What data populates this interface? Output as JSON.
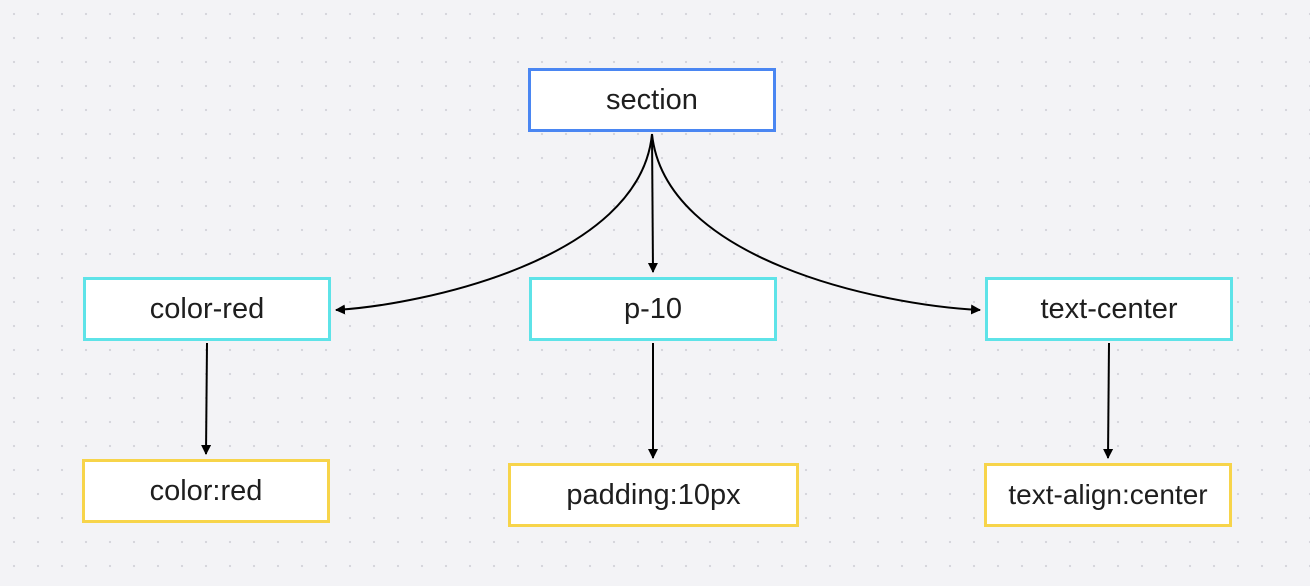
{
  "diagram": {
    "type": "tree",
    "colors": {
      "root_border": "#4a86f2",
      "utility_border": "#5ee3e8",
      "css_border": "#f7d44a",
      "edge": "#000000"
    },
    "root": {
      "label": "section"
    },
    "utilities": [
      {
        "label": "color-red",
        "css": "color:red"
      },
      {
        "label": "p-10",
        "css": "padding:10px"
      },
      {
        "label": "text-center",
        "css": "text-align:center"
      }
    ]
  }
}
